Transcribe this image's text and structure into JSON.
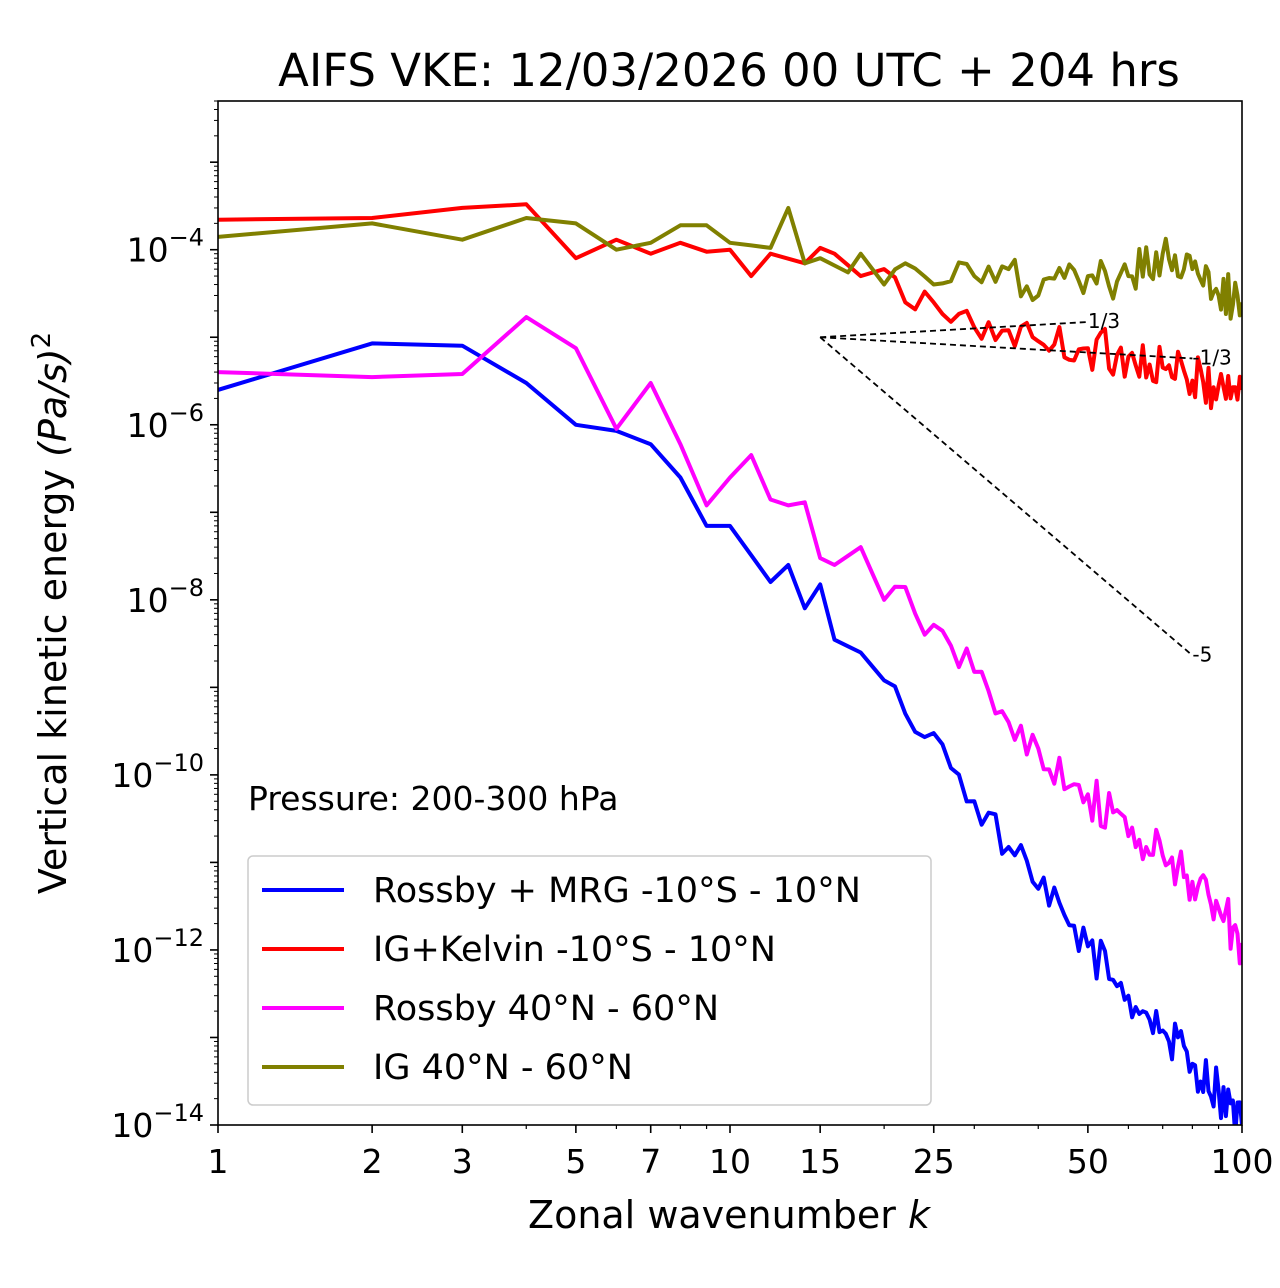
{
  "chart_data": {
    "type": "line",
    "title": "AIFS VKE: 12/03/2026 00 UTC + 204 hrs",
    "xlabel": "Zonal wavenumber",
    "xlabel_var": "k",
    "ylabel": "Vertical kinetic energy",
    "ylabel_unit": "(Pa/s)",
    "ylabel_unit_exp": "2",
    "xscale": "log",
    "yscale": "log",
    "xlim": [
      1,
      100
    ],
    "ylim": [
      1e-14,
      0.005
    ],
    "xticks": [
      1,
      2,
      3,
      5,
      7,
      10,
      15,
      25,
      50,
      100
    ],
    "xtick_labels": [
      "1",
      "2",
      "3",
      "5",
      "7",
      "10",
      "15",
      "25",
      "50",
      "100"
    ],
    "yticks": [
      {
        "value": 1e-14,
        "base": "10",
        "exp": "−14"
      },
      {
        "value": 1e-12,
        "base": "10",
        "exp": "−12"
      },
      {
        "value": 1e-10,
        "base": "10",
        "exp": "−10"
      },
      {
        "value": 1e-08,
        "base": "10",
        "exp": "−8"
      },
      {
        "value": 1e-06,
        "base": "10",
        "exp": "−6"
      },
      {
        "value": 0.0001,
        "base": "10",
        "exp": "−4"
      }
    ],
    "annotation": "Pressure: 200-300 hPa",
    "legend_position": "lower-left",
    "reference_slopes": [
      {
        "label": "1/3",
        "slope": 0.3333,
        "x0": 15,
        "y0": 1e-05,
        "x1": 50
      },
      {
        "label": "-1/3",
        "slope": -0.3333,
        "x0": 15,
        "y0": 1e-05,
        "x1": 80
      },
      {
        "label": "-5",
        "slope": -5,
        "x0": 15,
        "y0": 1e-05,
        "x1": 80
      }
    ],
    "series": [
      {
        "name": "Rossby + MRG -10°S - 10°N",
        "color": "#0000ff",
        "anchors": [
          [
            1,
            2.5e-06
          ],
          [
            2,
            8.5e-06
          ],
          [
            3,
            8e-06
          ],
          [
            4,
            3e-06
          ],
          [
            5,
            1e-06
          ],
          [
            6,
            8.5e-07
          ],
          [
            7,
            6e-07
          ],
          [
            8,
            2.5e-07
          ],
          [
            9,
            7e-08
          ],
          [
            10,
            7e-08
          ],
          [
            12,
            1.6e-08
          ],
          [
            13,
            2.5e-08
          ],
          [
            14,
            8e-09
          ],
          [
            15,
            1.5e-08
          ],
          [
            16,
            3.5e-09
          ],
          [
            18,
            2.5e-09
          ],
          [
            20,
            1.2e-09
          ],
          [
            22,
            5e-10
          ],
          [
            25,
            3e-10
          ],
          [
            27,
            1.2e-10
          ],
          [
            30,
            5e-11
          ],
          [
            35,
            1.5e-11
          ],
          [
            40,
            5e-12
          ],
          [
            50,
            1.1e-12
          ],
          [
            60,
            3e-13
          ],
          [
            70,
            1.2e-13
          ],
          [
            80,
            5e-14
          ],
          [
            90,
            2.5e-14
          ],
          [
            100,
            1e-14
          ]
        ]
      },
      {
        "name": "IG+Kelvin -10°S - 10°N",
        "color": "#ff0000",
        "anchors": [
          [
            1,
            0.00022
          ],
          [
            2,
            0.00023
          ],
          [
            3,
            0.0003
          ],
          [
            4,
            0.00033
          ],
          [
            5,
            8e-05
          ],
          [
            6,
            0.00013
          ],
          [
            7,
            9e-05
          ],
          [
            8,
            0.00012
          ],
          [
            9,
            9.5e-05
          ],
          [
            10,
            0.0001
          ],
          [
            11,
            5e-05
          ],
          [
            12,
            9e-05
          ],
          [
            14,
            7e-05
          ],
          [
            15,
            0.000105
          ],
          [
            16,
            9e-05
          ],
          [
            18,
            5e-05
          ],
          [
            20,
            6e-05
          ],
          [
            22,
            2.5e-05
          ],
          [
            25,
            2.5e-05
          ],
          [
            27,
            1.5e-05
          ],
          [
            30,
            1.3e-05
          ],
          [
            35,
            1.2e-05
          ],
          [
            40,
            9e-06
          ],
          [
            50,
            7.5e-06
          ],
          [
            60,
            6e-06
          ],
          [
            70,
            4.5e-06
          ],
          [
            80,
            3.2e-06
          ],
          [
            90,
            2.8e-06
          ],
          [
            100,
            2.5e-06
          ]
        ]
      },
      {
        "name": "Rossby 40°N - 60°N",
        "color": "#ff00ff",
        "anchors": [
          [
            1,
            4e-06
          ],
          [
            2,
            3.5e-06
          ],
          [
            3,
            3.8e-06
          ],
          [
            4,
            1.7e-05
          ],
          [
            5,
            7.5e-06
          ],
          [
            6,
            9e-07
          ],
          [
            7,
            3e-06
          ],
          [
            8,
            6e-07
          ],
          [
            9,
            1.2e-07
          ],
          [
            10,
            2.5e-07
          ],
          [
            11,
            4.5e-07
          ],
          [
            12,
            1.4e-07
          ],
          [
            13,
            1.2e-07
          ],
          [
            14,
            1.3e-07
          ],
          [
            15,
            3e-08
          ],
          [
            16,
            2.5e-08
          ],
          [
            18,
            4e-08
          ],
          [
            20,
            1e-08
          ],
          [
            22,
            1.4e-08
          ],
          [
            24,
            4e-09
          ],
          [
            27,
            3e-09
          ],
          [
            30,
            1.5e-09
          ],
          [
            35,
            4e-10
          ],
          [
            40,
            2e-10
          ],
          [
            50,
            6e-11
          ],
          [
            60,
            2e-11
          ],
          [
            70,
            1.2e-11
          ],
          [
            80,
            6e-12
          ],
          [
            90,
            3e-12
          ],
          [
            100,
            1.2e-12
          ]
        ]
      },
      {
        "name": "IG 40°N - 60°N",
        "color": "#808000",
        "anchors": [
          [
            1,
            0.00014
          ],
          [
            2,
            0.0002
          ],
          [
            3,
            0.00013
          ],
          [
            4,
            0.00023
          ],
          [
            5,
            0.0002
          ],
          [
            6,
            0.0001
          ],
          [
            7,
            0.00012
          ],
          [
            8,
            0.00019
          ],
          [
            9,
            0.00019
          ],
          [
            10,
            0.00012
          ],
          [
            12,
            0.000105
          ],
          [
            13,
            0.0003
          ],
          [
            14,
            7e-05
          ],
          [
            15,
            8e-05
          ],
          [
            17,
            5.5e-05
          ],
          [
            18,
            9e-05
          ],
          [
            20,
            4e-05
          ],
          [
            22,
            7e-05
          ],
          [
            25,
            4e-05
          ],
          [
            30,
            5e-05
          ],
          [
            35,
            6e-05
          ],
          [
            40,
            3e-05
          ],
          [
            50,
            5e-05
          ],
          [
            60,
            5e-05
          ],
          [
            70,
            9e-05
          ],
          [
            80,
            6e-05
          ],
          [
            90,
            3e-05
          ],
          [
            100,
            2.5e-05
          ]
        ]
      }
    ]
  }
}
